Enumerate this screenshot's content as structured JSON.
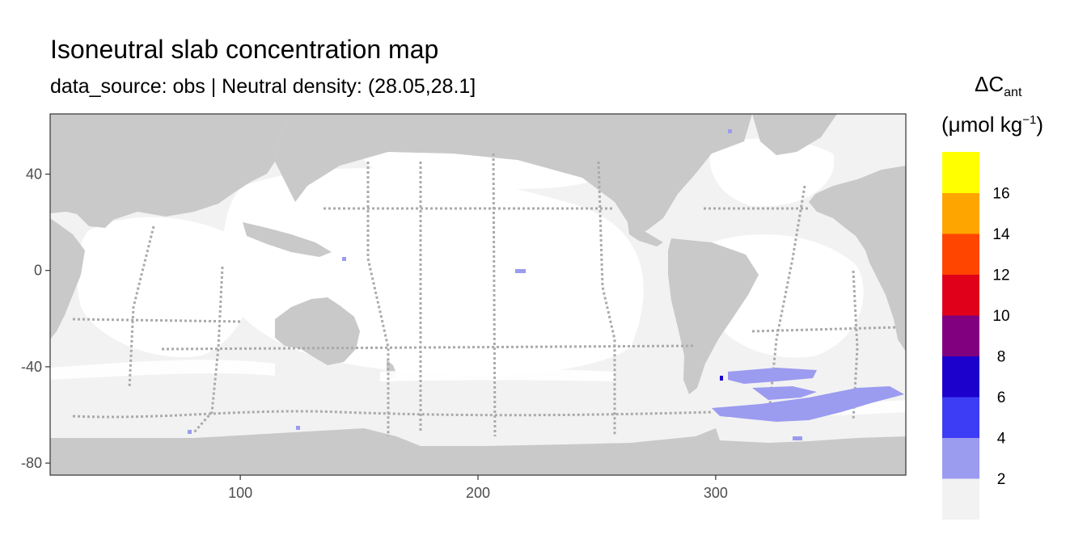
{
  "title": "Isoneutral slab concentration map",
  "subtitle": "data_source: obs | Neutral density: (28.05,28.1]",
  "chart_data": {
    "type": "heatmap",
    "x_ticks": [
      100,
      200,
      300
    ],
    "y_ticks": [
      40,
      0,
      -40,
      -80
    ],
    "xlim": [
      20,
      380
    ],
    "ylim": [
      -85,
      65
    ],
    "legend": {
      "title_main": "ΔC",
      "title_sub": "ant",
      "unit_prefix": "(μmol kg",
      "unit_sup": "−1",
      "unit_suffix": ")",
      "breaks": [
        "2",
        "4",
        "6",
        "8",
        "10",
        "12",
        "14",
        "16"
      ],
      "colors": [
        "#f2f2f2",
        "#9b9bf0",
        "#3d3df5",
        "#1c00cc",
        "#800080",
        "#e0001a",
        "#ff4500",
        "#ffa500",
        "#ffff00"
      ]
    },
    "colors": {
      "land": "#c9c9c9",
      "ocean_low": "#f2f2f2",
      "ocean_white": "#ffffff",
      "track": "#aaaaaa",
      "bin_2_4": "#9b9bf0",
      "border": "#333333"
    }
  }
}
